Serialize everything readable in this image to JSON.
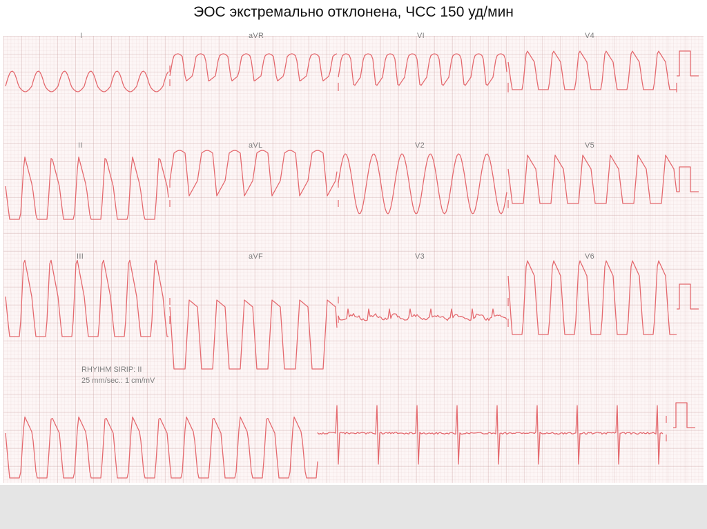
{
  "slide": {
    "title": "ЭОС экстремально отклонена, ЧСС 150 уд/мин"
  },
  "ecg": {
    "trace_color": "#e4696e",
    "grid_color": "#d9b8b8",
    "leads": {
      "I": "I",
      "aVR": "aVR",
      "V1": "VI",
      "V4": "V4",
      "II": "II",
      "aVL": "aVL",
      "V2": "V2",
      "V5": "V5",
      "III": "III",
      "aVF": "aVF",
      "V3": "V3",
      "V6": "V6"
    },
    "rhythm_strip_label": "RHYIHM SIRIP: II",
    "calibration_label": "25 mm/sec.: 1 cm/mV",
    "heart_rate_bpm": 150
  }
}
